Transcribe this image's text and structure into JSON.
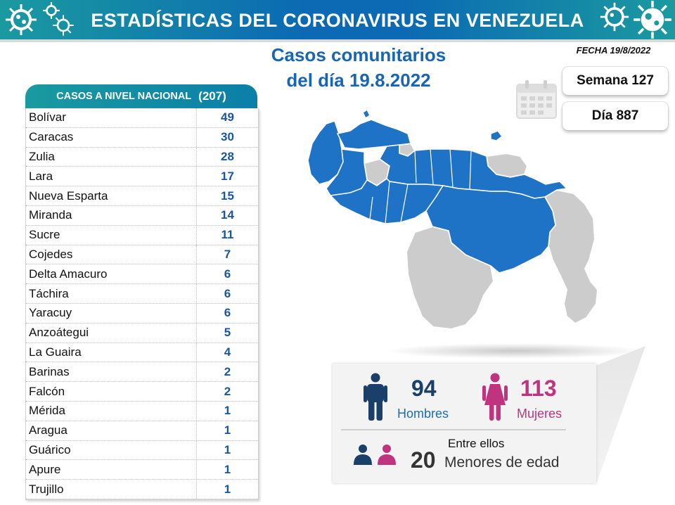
{
  "header": {
    "title": "ESTADÍSTICAS DEL CORONAVIRUS EN VENEZUELA"
  },
  "subtitle": {
    "line1": "Casos comunitarios",
    "line2": "del día 19.8.2022"
  },
  "fecha": "FECHA 19/8/2022",
  "table": {
    "header_label": "CASOS A NIVEL NACIONAL",
    "header_total": "(207)",
    "rows": [
      {
        "state": "Bolívar",
        "cases": "49"
      },
      {
        "state": "Caracas",
        "cases": "30"
      },
      {
        "state": "Zulia",
        "cases": "28"
      },
      {
        "state": "Lara",
        "cases": "17"
      },
      {
        "state": "Nueva Esparta",
        "cases": "15"
      },
      {
        "state": "Miranda",
        "cases": "14"
      },
      {
        "state": "Sucre",
        "cases": "11"
      },
      {
        "state": "Cojedes",
        "cases": "7"
      },
      {
        "state": "Delta Amacuro",
        "cases": "6"
      },
      {
        "state": "Táchira",
        "cases": "6"
      },
      {
        "state": "Yaracuy",
        "cases": "6"
      },
      {
        "state": "Anzoátegui",
        "cases": "5"
      },
      {
        "state": "La Guaira",
        "cases": "4"
      },
      {
        "state": "Barinas",
        "cases": "2"
      },
      {
        "state": "Falcón",
        "cases": "2"
      },
      {
        "state": "Mérida",
        "cases": "1"
      },
      {
        "state": "Aragua",
        "cases": "1"
      },
      {
        "state": "Guárico",
        "cases": "1"
      },
      {
        "state": "Apure",
        "cases": "1"
      },
      {
        "state": "Trujillo",
        "cases": "1"
      }
    ]
  },
  "semana": "Semana 127",
  "dia": "Día 887",
  "stats": {
    "hombres_count": "94",
    "hombres_label": "Hombres",
    "mujeres_count": "113",
    "mujeres_label": "Mujeres",
    "entre_ellos": "Entre ellos",
    "menores_count": "20",
    "menores_label": "Menores de edad"
  },
  "colors": {
    "banner": "#0b6ab3",
    "accent_teal": "#1a9aa0",
    "map_cases": "#1f73c7",
    "map_no_cases": "#cccccc",
    "male": "#1a3f6b",
    "female": "#c0347f"
  },
  "icons": [
    "virus-icon",
    "calendar-icon",
    "man-icon",
    "woman-icon",
    "children-icon"
  ]
}
